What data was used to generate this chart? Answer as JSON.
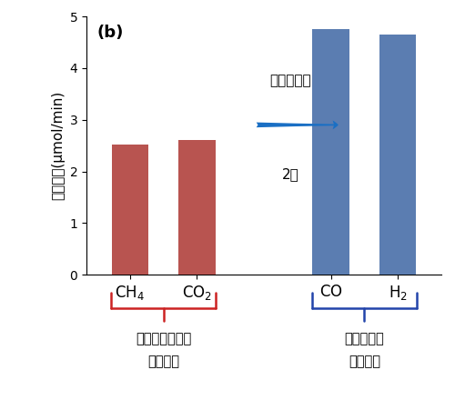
{
  "values": [
    2.52,
    2.6,
    4.76,
    4.65
  ],
  "bar_colors_red": "#b85450",
  "bar_colors_blue": "#5b7db1",
  "ylabel": "反応速度(μmol/min)",
  "ylim": [
    0,
    5
  ],
  "yticks": [
    0,
    1,
    2,
    3,
    4,
    5
  ],
  "panel_label": "(b)",
  "arrow_text_top": "化学量論的",
  "arrow_text_bot": "2倍",
  "brace_red_text1": "温室効果ガスの",
  "brace_red_text2": "消費速度",
  "brace_blue_text1": "合成ガスの",
  "brace_blue_text2": "生成速度",
  "background_color": "#ffffff",
  "bar_width": 0.55,
  "arrow_color": "#1a6fc4",
  "brace_red_color": "#cc2222",
  "brace_blue_color": "#2244aa"
}
